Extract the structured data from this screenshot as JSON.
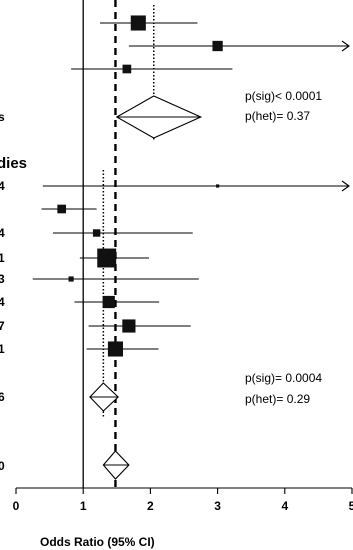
{
  "chart_data": {
    "type": "forest",
    "xlabel": "Odds Ratio (95% CI)",
    "xlim": [
      0,
      5
    ],
    "x_ticks": [
      0,
      1,
      2,
      3,
      4,
      5
    ],
    "x_tick_labels": [
      "0",
      "1",
      "2",
      "3",
      "4",
      "5"
    ],
    "null_line": 1,
    "overall_line": 1.48,
    "groups": [
      {
        "label": "",
        "studies": [
          {
            "label": "",
            "or": 1.82,
            "lo": 1.25,
            "hi": 2.7,
            "weight": 4.4
          },
          {
            "label": "",
            "or": 3.0,
            "lo": 1.68,
            "hi": 5.3,
            "weight": 2.9
          },
          {
            "label": "",
            "or": 1.65,
            "lo": 0.82,
            "hi": 3.22,
            "weight": 2.4
          }
        ],
        "summary": {
          "label": "s",
          "or": 2.05,
          "lo": 1.5,
          "hi": 2.75
        },
        "p_sig": "p(sig)< 0.0001",
        "p_het": "p(het)= 0.37"
      },
      {
        "label": "dies",
        "studies": [
          {
            "label": "4",
            "or": 3.0,
            "lo": 0.4,
            "hi": 5.3,
            "weight": 0.7
          },
          {
            "label": "",
            "or": 0.68,
            "lo": 0.38,
            "hi": 1.2,
            "weight": 2.4
          },
          {
            "label": "4",
            "or": 1.2,
            "lo": 0.55,
            "hi": 2.63,
            "weight": 2.0
          },
          {
            "label": "1",
            "or": 1.35,
            "lo": 0.95,
            "hi": 1.98,
            "weight": 5.6
          },
          {
            "label": "3",
            "or": 0.82,
            "lo": 0.25,
            "hi": 2.72,
            "weight": 1.3
          },
          {
            "label": "4",
            "or": 1.38,
            "lo": 0.87,
            "hi": 2.13,
            "weight": 3.5
          },
          {
            "label": "7",
            "or": 1.68,
            "lo": 1.08,
            "hi": 2.6,
            "weight": 3.8
          },
          {
            "label": "1",
            "or": 1.48,
            "lo": 1.05,
            "hi": 2.12,
            "weight": 4.4
          }
        ],
        "summary": {
          "label": "6",
          "or": 1.3,
          "lo": 1.1,
          "hi": 1.52
        },
        "p_sig": "p(sig)= 0.0004",
        "p_het": "p(het)= 0.29"
      }
    ],
    "overall": {
      "label": "0",
      "or": 1.48,
      "lo": 1.3,
      "hi": 1.68
    }
  }
}
